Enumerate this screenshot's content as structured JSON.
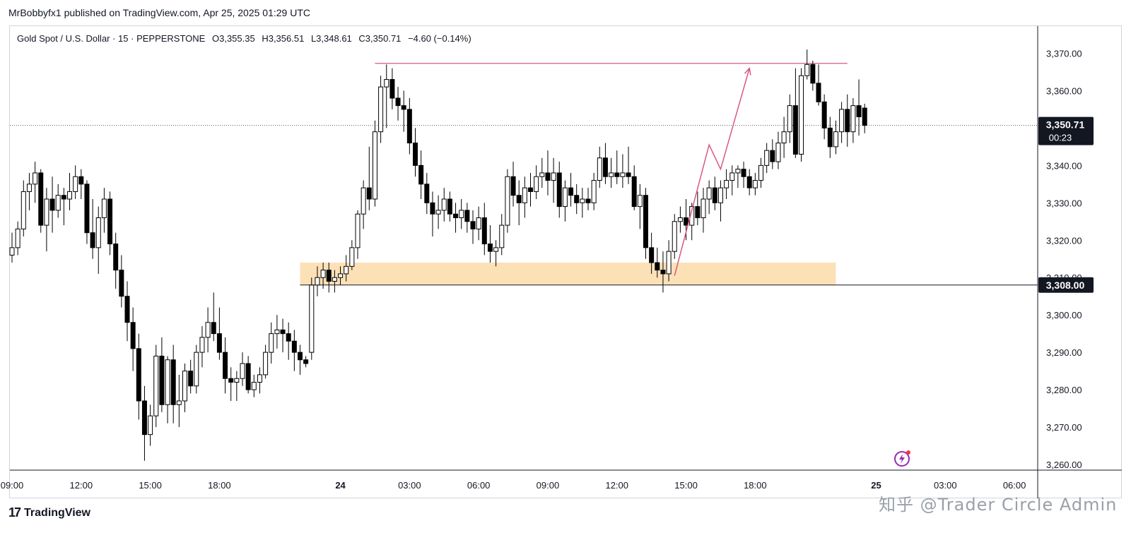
{
  "header": {
    "published": "MrBobbyfx1 published on TradingView.com, Apr 25, 2025 01:29 UTC"
  },
  "legend": {
    "symbol": "Gold Spot / U.S. Dollar · 15 · PEPPERSTONE",
    "open": "O3,355.35",
    "high": "H3,356.51",
    "low": "L3,348.61",
    "close": "C3,350.71",
    "change": "−4.60 (−0.14%)"
  },
  "price_label": {
    "price": "3,350.71",
    "countdown": "00:23"
  },
  "level_label": {
    "price": "3,308.00"
  },
  "footer": {
    "brand": "TradingView",
    "watermark": "知乎 @Trader Circle Admin"
  },
  "colors": {
    "zone": "#fcdcaa",
    "resistance": "#d9587e",
    "arrow": "#d9587e",
    "candle_up": "#ffffff",
    "candle_down": "#000000"
  },
  "chart_data": {
    "type": "candlestick",
    "symbol": "Gold Spot / U.S. Dollar",
    "timeframe": "15",
    "ylim": [
      3260,
      3375
    ],
    "y_ticks": [
      {
        "value": 3370,
        "label": "3,370.00"
      },
      {
        "value": 3360,
        "label": "3,360.00"
      },
      {
        "value": 3340,
        "label": "3,340.00"
      },
      {
        "value": 3330,
        "label": "3,330.00"
      },
      {
        "value": 3320,
        "label": "3,320.00"
      },
      {
        "value": 3310,
        "label": "3,310.00"
      },
      {
        "value": 3300,
        "label": "3,300.00"
      },
      {
        "value": 3290,
        "label": "3,290.00"
      },
      {
        "value": 3280,
        "label": "3,280.00"
      },
      {
        "value": 3270,
        "label": "3,270.00"
      },
      {
        "value": 3260,
        "label": "3,260.00"
      }
    ],
    "x_ticks": [
      {
        "index": 0,
        "label": "09:00",
        "bold": false
      },
      {
        "index": 12,
        "label": "12:00",
        "bold": false
      },
      {
        "index": 24,
        "label": "15:00",
        "bold": false
      },
      {
        "index": 36,
        "label": "18:00",
        "bold": false
      },
      {
        "index": 57,
        "label": "24",
        "bold": true
      },
      {
        "index": 69,
        "label": "03:00",
        "bold": false
      },
      {
        "index": 81,
        "label": "06:00",
        "bold": false
      },
      {
        "index": 93,
        "label": "09:00",
        "bold": false
      },
      {
        "index": 105,
        "label": "12:00",
        "bold": false
      },
      {
        "index": 117,
        "label": "15:00",
        "bold": false
      },
      {
        "index": 129,
        "label": "18:00",
        "bold": false
      },
      {
        "index": 150,
        "label": "25",
        "bold": true
      },
      {
        "index": 162,
        "label": "03:00",
        "bold": false
      },
      {
        "index": 174,
        "label": "06:00",
        "bold": false
      }
    ],
    "last_price": 3350.71,
    "support_level": 3308.0,
    "resistance": {
      "from_index": 63,
      "to_index": 145,
      "value": 3367.3
    },
    "demand_zone": {
      "from_index": 50,
      "to_index": 143,
      "top": 3314.0,
      "bottom": 3308.0
    },
    "projection": [
      {
        "index": 115,
        "value": 3310.5
      },
      {
        "index": 121,
        "value": 3345.5
      },
      {
        "index": 123,
        "value": 3339.0
      },
      {
        "index": 128,
        "value": 3366.0
      }
    ],
    "candles": [
      [
        3316,
        3322,
        3314,
        3318
      ],
      [
        3318,
        3325,
        3316,
        3323
      ],
      [
        3323,
        3336,
        3321,
        3333
      ],
      [
        3333,
        3338,
        3328,
        3335
      ],
      [
        3335,
        3341,
        3330,
        3338
      ],
      [
        3338,
        3339,
        3322,
        3324
      ],
      [
        3324,
        3334,
        3317,
        3331
      ],
      [
        3331,
        3337,
        3322,
        3328
      ],
      [
        3328,
        3335,
        3326,
        3332
      ],
      [
        3332,
        3334,
        3324,
        3331
      ],
      [
        3331,
        3338,
        3328,
        3333
      ],
      [
        3333,
        3340,
        3331,
        3337
      ],
      [
        3337,
        3339,
        3331,
        3335
      ],
      [
        3335,
        3336,
        3319,
        3322
      ],
      [
        3322,
        3331,
        3315,
        3318
      ],
      [
        3318,
        3329,
        3311,
        3326
      ],
      [
        3326,
        3334,
        3322,
        3331
      ],
      [
        3331,
        3333,
        3316,
        3319
      ],
      [
        3319,
        3322,
        3307,
        3312
      ],
      [
        3312,
        3316,
        3302,
        3305
      ],
      [
        3305,
        3309,
        3293,
        3298
      ],
      [
        3298,
        3302,
        3285,
        3291
      ],
      [
        3291,
        3295,
        3272,
        3277
      ],
      [
        3277,
        3281,
        3261,
        3268
      ],
      [
        3268,
        3276,
        3265,
        3273
      ],
      [
        3273,
        3292,
        3270,
        3289
      ],
      [
        3289,
        3294,
        3274,
        3276
      ],
      [
        3276,
        3289,
        3271,
        3288
      ],
      [
        3288,
        3292,
        3271,
        3276
      ],
      [
        3276,
        3284,
        3270,
        3277
      ],
      [
        3277,
        3287,
        3274,
        3285
      ],
      [
        3285,
        3288,
        3279,
        3281
      ],
      [
        3281,
        3292,
        3279,
        3290
      ],
      [
        3290,
        3297,
        3286,
        3294
      ],
      [
        3294,
        3302,
        3290,
        3298
      ],
      [
        3298,
        3306,
        3293,
        3295
      ],
      [
        3295,
        3302,
        3288,
        3290
      ],
      [
        3290,
        3294,
        3279,
        3283
      ],
      [
        3283,
        3286,
        3277,
        3282
      ],
      [
        3282,
        3285,
        3277,
        3283
      ],
      [
        3283,
        3290,
        3281,
        3287
      ],
      [
        3287,
        3289,
        3279,
        3280
      ],
      [
        3280,
        3284,
        3278,
        3282
      ],
      [
        3282,
        3286,
        3279,
        3284
      ],
      [
        3284,
        3292,
        3283,
        3290
      ],
      [
        3290,
        3298,
        3287,
        3295
      ],
      [
        3295,
        3300,
        3291,
        3296
      ],
      [
        3296,
        3299,
        3290,
        3295
      ],
      [
        3295,
        3298,
        3288,
        3293
      ],
      [
        3293,
        3296,
        3285,
        3290
      ],
      [
        3290,
        3292,
        3284,
        3288
      ],
      [
        3288,
        3289,
        3286,
        3287
      ],
      [
        3290,
        3310,
        3288,
        3308
      ],
      [
        3308,
        3313,
        3305,
        3310
      ],
      [
        3310,
        3314,
        3307,
        3312
      ],
      [
        3312,
        3314,
        3306,
        3309
      ],
      [
        3309,
        3312,
        3306,
        3310
      ],
      [
        3310,
        3313,
        3308,
        3311
      ],
      [
        3311,
        3316,
        3309,
        3313
      ],
      [
        3313,
        3320,
        3312,
        3318
      ],
      [
        3318,
        3328,
        3315,
        3327
      ],
      [
        3327,
        3336,
        3323,
        3334
      ],
      [
        3334,
        3345,
        3328,
        3331
      ],
      [
        3331,
        3352,
        3329,
        3349
      ],
      [
        3349,
        3364,
        3346,
        3361
      ],
      [
        3361,
        3367,
        3350,
        3363
      ],
      [
        3363,
        3366,
        3355,
        3358
      ],
      [
        3358,
        3361,
        3352,
        3356
      ],
      [
        3356,
        3360,
        3349,
        3355
      ],
      [
        3355,
        3358,
        3343,
        3346
      ],
      [
        3346,
        3350,
        3337,
        3340
      ],
      [
        3340,
        3344,
        3331,
        3335
      ],
      [
        3335,
        3338,
        3327,
        3330
      ],
      [
        3330,
        3333,
        3321,
        3327
      ],
      [
        3327,
        3332,
        3323,
        3328
      ],
      [
        3328,
        3334,
        3325,
        3331
      ],
      [
        3331,
        3333,
        3325,
        3327
      ],
      [
        3327,
        3330,
        3322,
        3326
      ],
      [
        3326,
        3331,
        3323,
        3328
      ],
      [
        3328,
        3330,
        3322,
        3325
      ],
      [
        3325,
        3328,
        3319,
        3323
      ],
      [
        3323,
        3329,
        3320,
        3326
      ],
      [
        3326,
        3330,
        3316,
        3319
      ],
      [
        3319,
        3324,
        3314,
        3317
      ],
      [
        3317,
        3320,
        3313,
        3318
      ],
      [
        3318,
        3327,
        3316,
        3324
      ],
      [
        3324,
        3339,
        3322,
        3337
      ],
      [
        3337,
        3341,
        3329,
        3332
      ],
      [
        3332,
        3336,
        3324,
        3330
      ],
      [
        3330,
        3337,
        3326,
        3334
      ],
      [
        3334,
        3338,
        3329,
        3333
      ],
      [
        3333,
        3340,
        3331,
        3337
      ],
      [
        3337,
        3342,
        3334,
        3338
      ],
      [
        3338,
        3344,
        3332,
        3336
      ],
      [
        3336,
        3342,
        3330,
        3338
      ],
      [
        3338,
        3341,
        3326,
        3329
      ],
      [
        3329,
        3336,
        3325,
        3334
      ],
      [
        3334,
        3338,
        3329,
        3332
      ],
      [
        3332,
        3335,
        3327,
        3330
      ],
      [
        3330,
        3334,
        3326,
        3331
      ],
      [
        3331,
        3334,
        3328,
        3330
      ],
      [
        3330,
        3338,
        3328,
        3336
      ],
      [
        3336,
        3345,
        3334,
        3342
      ],
      [
        3342,
        3346,
        3335,
        3337
      ],
      [
        3337,
        3342,
        3334,
        3338
      ],
      [
        3338,
        3344,
        3335,
        3337
      ],
      [
        3337,
        3343,
        3334,
        3338
      ],
      [
        3338,
        3345,
        3335,
        3337
      ],
      [
        3337,
        3340,
        3328,
        3329
      ],
      [
        3329,
        3335,
        3323,
        3332
      ],
      [
        3332,
        3334,
        3315,
        3318
      ],
      [
        3318,
        3322,
        3311,
        3314
      ],
      [
        3314,
        3318,
        3310,
        3312
      ],
      [
        3312,
        3317,
        3306,
        3311
      ],
      [
        3311,
        3320,
        3309,
        3317
      ],
      [
        3317,
        3327,
        3315,
        3325
      ],
      [
        3325,
        3329,
        3322,
        3326
      ],
      [
        3326,
        3331,
        3320,
        3324
      ],
      [
        3324,
        3330,
        3320,
        3329
      ],
      [
        3329,
        3333,
        3324,
        3326
      ],
      [
        3326,
        3334,
        3322,
        3331
      ],
      [
        3331,
        3336,
        3327,
        3334
      ],
      [
        3334,
        3337,
        3328,
        3330
      ],
      [
        3330,
        3336,
        3325,
        3334
      ],
      [
        3334,
        3339,
        3331,
        3336
      ],
      [
        3336,
        3340,
        3332,
        3338
      ],
      [
        3338,
        3340,
        3334,
        3339
      ],
      [
        3339,
        3341,
        3334,
        3337
      ],
      [
        3337,
        3339,
        3332,
        3334
      ],
      [
        3334,
        3338,
        3332,
        3336
      ],
      [
        3336,
        3342,
        3334,
        3340
      ],
      [
        3340,
        3346,
        3338,
        3344
      ],
      [
        3344,
        3347,
        3339,
        3341
      ],
      [
        3341,
        3349,
        3339,
        3346
      ],
      [
        3346,
        3353,
        3342,
        3349
      ],
      [
        3349,
        3359,
        3346,
        3356
      ],
      [
        3356,
        3366,
        3342,
        3343
      ],
      [
        3343,
        3366,
        3341,
        3364
      ],
      [
        3364,
        3371,
        3363,
        3367
      ],
      [
        3367,
        3368,
        3360,
        3362
      ],
      [
        3362,
        3367,
        3356,
        3357
      ],
      [
        3357,
        3359,
        3347,
        3350
      ],
      [
        3350,
        3353,
        3342,
        3345
      ],
      [
        3345,
        3352,
        3343,
        3349
      ],
      [
        3349,
        3357,
        3346,
        3355
      ],
      [
        3355,
        3359,
        3345,
        3349
      ],
      [
        3349,
        3358,
        3346,
        3356
      ],
      [
        3356,
        3363,
        3348,
        3353
      ],
      [
        3355.35,
        3356.51,
        3348.61,
        3350.71
      ]
    ]
  }
}
